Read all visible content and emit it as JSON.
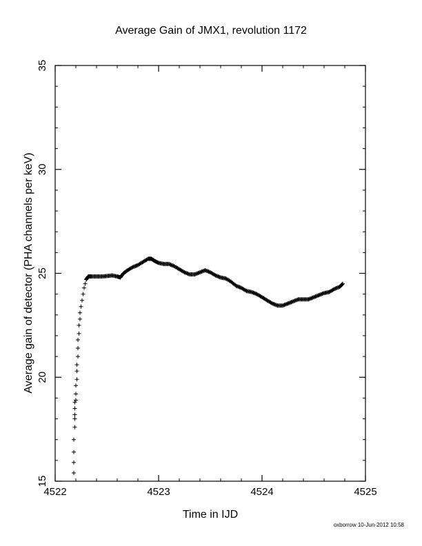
{
  "page": {
    "title": "Average Gain of JMX1, revolution 1172",
    "footer": "oxborrow 10-Jun-2012 10:58"
  },
  "chart_data": {
    "type": "scatter",
    "marker": "plus",
    "color": "#000000",
    "title": "Average Gain of JMX1, revolution 1172",
    "xlabel": "Time in IJD",
    "ylabel": "Average gain of detector (PHA channels per keV)",
    "xlim": [
      4522,
      4525
    ],
    "ylim": [
      15,
      35
    ],
    "xticks": [
      4522,
      4523,
      4524,
      4525
    ],
    "yticks": [
      15,
      20,
      25,
      30,
      35
    ],
    "xtick_labels": [
      "4522",
      "4523",
      "4524",
      "4525"
    ],
    "ytick_labels": [
      "15",
      "20",
      "25",
      "30",
      "35"
    ],
    "grid": false,
    "series": [
      {
        "points": [
          [
            4522.18,
            15.4
          ],
          [
            4522.18,
            15.9
          ],
          [
            4522.18,
            16.4
          ],
          [
            4522.18,
            17.0
          ],
          [
            4522.19,
            17.6
          ],
          [
            4522.19,
            18.0
          ],
          [
            4522.19,
            18.2
          ],
          [
            4522.19,
            18.5
          ],
          [
            4522.19,
            18.8
          ],
          [
            4522.2,
            18.9
          ],
          [
            4522.2,
            19.2
          ],
          [
            4522.2,
            19.6
          ],
          [
            4522.21,
            19.9
          ],
          [
            4522.21,
            20.3
          ],
          [
            4522.21,
            20.6
          ],
          [
            4522.22,
            21.0
          ],
          [
            4522.22,
            21.4
          ],
          [
            4522.22,
            21.8
          ],
          [
            4522.23,
            22.1
          ],
          [
            4522.23,
            22.5
          ],
          [
            4522.24,
            22.8
          ],
          [
            4522.24,
            23.1
          ],
          [
            4522.25,
            23.4
          ],
          [
            4522.26,
            23.7
          ],
          [
            4522.27,
            24.0
          ],
          [
            4522.28,
            24.3
          ],
          [
            4522.29,
            24.5
          ],
          [
            4522.3,
            24.7
          ],
          [
            4522.32,
            24.85
          ],
          [
            4522.35,
            24.85
          ],
          [
            4522.4,
            24.85
          ],
          [
            4522.45,
            24.85
          ],
          [
            4522.5,
            24.87
          ],
          [
            4522.55,
            24.9
          ],
          [
            4522.6,
            24.85
          ],
          [
            4522.63,
            24.8
          ],
          [
            4522.66,
            25.0
          ],
          [
            4522.7,
            25.15
          ],
          [
            4522.75,
            25.3
          ],
          [
            4522.8,
            25.4
          ],
          [
            4522.85,
            25.55
          ],
          [
            4522.9,
            25.7
          ],
          [
            4522.93,
            25.7
          ],
          [
            4522.96,
            25.6
          ],
          [
            4523.0,
            25.5
          ],
          [
            4523.05,
            25.45
          ],
          [
            4523.1,
            25.45
          ],
          [
            4523.15,
            25.35
          ],
          [
            4523.2,
            25.2
          ],
          [
            4523.25,
            25.05
          ],
          [
            4523.3,
            24.95
          ],
          [
            4523.35,
            24.95
          ],
          [
            4523.4,
            25.05
          ],
          [
            4523.45,
            25.15
          ],
          [
            4523.5,
            25.05
          ],
          [
            4523.55,
            24.9
          ],
          [
            4523.6,
            24.8
          ],
          [
            4523.65,
            24.75
          ],
          [
            4523.7,
            24.6
          ],
          [
            4523.75,
            24.4
          ],
          [
            4523.8,
            24.3
          ],
          [
            4523.85,
            24.15
          ],
          [
            4523.9,
            24.1
          ],
          [
            4523.95,
            24.0
          ],
          [
            4524.0,
            23.85
          ],
          [
            4524.05,
            23.7
          ],
          [
            4524.1,
            23.55
          ],
          [
            4524.15,
            23.45
          ],
          [
            4524.2,
            23.45
          ],
          [
            4524.25,
            23.55
          ],
          [
            4524.3,
            23.65
          ],
          [
            4524.35,
            23.75
          ],
          [
            4524.4,
            23.75
          ],
          [
            4524.45,
            23.75
          ],
          [
            4524.5,
            23.85
          ],
          [
            4524.55,
            23.95
          ],
          [
            4524.6,
            24.05
          ],
          [
            4524.65,
            24.1
          ],
          [
            4524.7,
            24.25
          ],
          [
            4524.75,
            24.35
          ],
          [
            4524.78,
            24.5
          ]
        ]
      }
    ]
  }
}
